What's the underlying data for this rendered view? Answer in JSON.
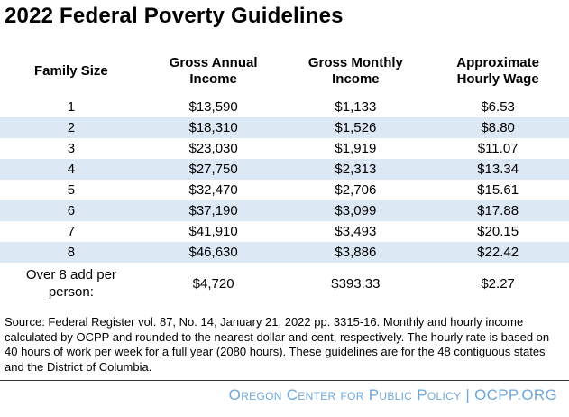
{
  "chart_data": {
    "type": "table",
    "title": "2022 Federal Poverty Guidelines",
    "columns": [
      "Family Size",
      "Gross Annual Income",
      "Gross Monthly Income",
      "Approximate Hourly Wage"
    ],
    "header_lines": [
      {
        "lines": [
          "Family Size"
        ]
      },
      {
        "lines": [
          "Gross Annual",
          "Income"
        ]
      },
      {
        "lines": [
          "Gross Monthly",
          "Income"
        ]
      },
      {
        "lines": [
          "Approximate",
          "Hourly Wage"
        ]
      }
    ],
    "rows": [
      {
        "cells": [
          "1",
          "$13,590",
          "$1,133",
          "$6.53"
        ]
      },
      {
        "cells": [
          "2",
          "$18,310",
          "$1,526",
          "$8.80"
        ]
      },
      {
        "cells": [
          "3",
          "$23,030",
          "$1,919",
          "$11.07"
        ]
      },
      {
        "cells": [
          "4",
          "$27,750",
          "$2,313",
          "$13.34"
        ]
      },
      {
        "cells": [
          "5",
          "$32,470",
          "$2,706",
          "$15.61"
        ]
      },
      {
        "cells": [
          "6",
          "$37,190",
          "$3,099",
          "$17.88"
        ]
      },
      {
        "cells": [
          "7",
          "$41,910",
          "$3,493",
          "$20.15"
        ]
      },
      {
        "cells": [
          "8",
          "$46,630",
          "$3,886",
          "$22.42"
        ]
      },
      {
        "cells": [
          "Over 8 add per person:",
          "$4,720",
          "$393.33",
          "$2.27"
        ]
      }
    ],
    "layout_hints": {
      "striped_rows": [
        2,
        4,
        6,
        8
      ],
      "cell_alignment": "center"
    }
  },
  "source_note": "Source: Federal Register vol. 87, No. 14, January 21, 2022 pp. 3315-16. Monthly and hourly income calculated by OCPP and rounded to the nearest dollar and cent, respectively. The hourly rate is based on 40 hours of work per week for a full year (2080 hours). These guidelines are for the 48 contiguous states and the District of Columbia.",
  "footer": {
    "text": "Oregon Center for Public Policy | OCPP.ORG"
  },
  "colors": {
    "stripe": "#DCE9F5",
    "footer_blue": "#6FA8DC",
    "divider": "#333333"
  }
}
